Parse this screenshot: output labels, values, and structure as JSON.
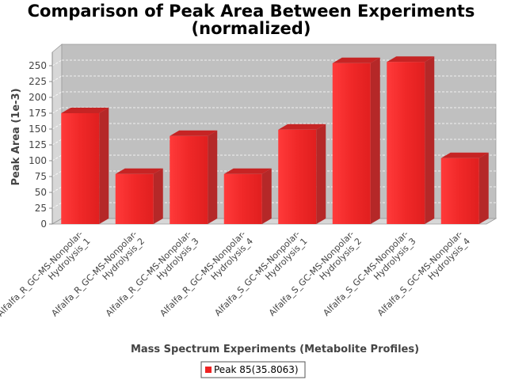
{
  "chart_data": {
    "type": "bar",
    "title_lines": [
      "Comparison of Peak Area Between Experiments",
      "(normalized)"
    ],
    "xlabel": "Mass Spectrum Experiments (Metabolite Profiles)",
    "ylabel": "Peak Area (1e-3)",
    "ylim": [
      0,
      270
    ],
    "yticks": [
      0,
      25,
      50,
      75,
      100,
      125,
      150,
      175,
      200,
      225,
      250
    ],
    "grid": true,
    "legend_position": "bottom-center",
    "categories": [
      [
        "Alfalfa_R_GC-MS-Nonpolar-",
        "Hydrolysis_1"
      ],
      [
        "Alfalfa_R_GC-MS-Nonpolar-",
        "Hydrolysis_2"
      ],
      [
        "Alfalfa_R_GC-MS-Nonpolar-",
        "Hydrolysis_3"
      ],
      [
        "Alfalfa_R_GC-MS-Nonpolar-",
        "Hydrolysis_4"
      ],
      [
        "Alfalfa_S_GC-MS-Nonpolar-",
        "Hydrolysis_1"
      ],
      [
        "Alfalfa_S_GC-MS-Nonpolar-",
        "Hydrolysis_2"
      ],
      [
        "Alfalfa_S_GC-MS-Nonpolar-",
        "Hydrolysis_3"
      ],
      [
        "Alfalfa_S_GC-MS-Nonpolar-",
        "Hydrolysis_4"
      ]
    ],
    "series": [
      {
        "name": "Peak 85(35.8063)",
        "color": "#ee2222",
        "values": [
          175,
          79,
          139,
          79,
          149,
          254,
          256,
          104
        ]
      }
    ]
  }
}
